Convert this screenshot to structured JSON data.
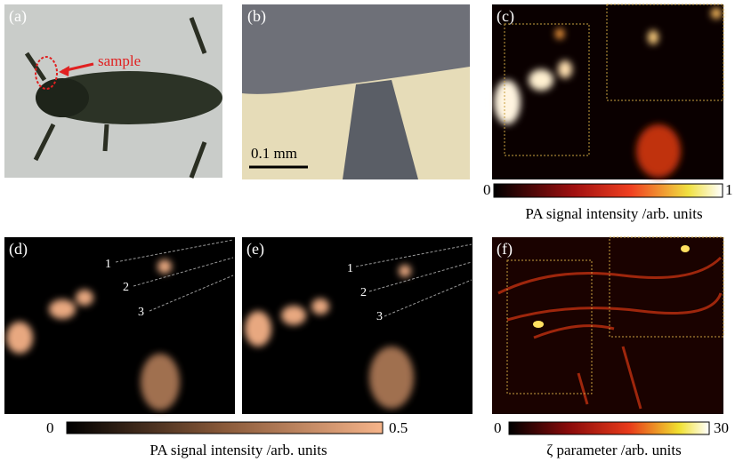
{
  "panels": [
    {
      "label": "(a)",
      "annotation": "sample"
    },
    {
      "label": "(b)",
      "scale_bar": "0.1 mm"
    },
    {
      "label": "(c)"
    },
    {
      "label": "(d)",
      "markers": [
        "1",
        "2",
        "3"
      ]
    },
    {
      "label": "(e)",
      "markers": [
        "1",
        "2",
        "3"
      ]
    },
    {
      "label": "(f)"
    }
  ],
  "colorbars": [
    {
      "min": "0",
      "max": "1",
      "label": "PA signal intensity /arb. units"
    },
    {
      "min": "0",
      "max": "0.5",
      "label": "PA signal intensity /arb. units"
    },
    {
      "min": "0",
      "max": "30",
      "label": "ζ parameter /arb. units"
    }
  ]
}
